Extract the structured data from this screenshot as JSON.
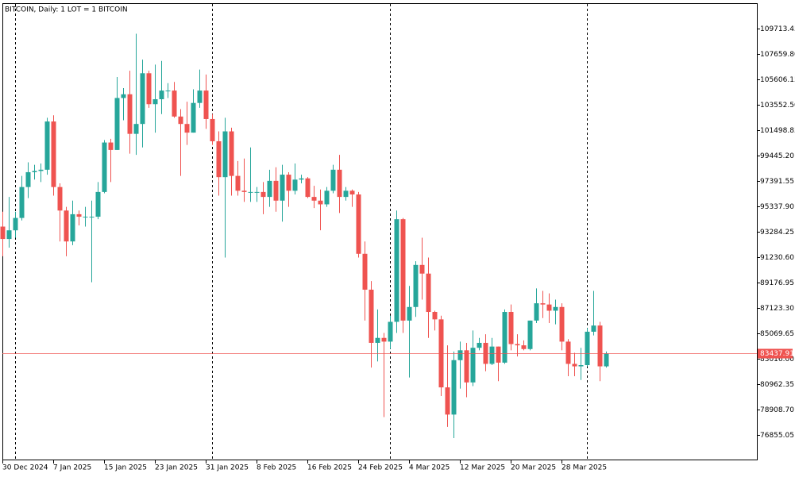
{
  "chart_data": {
    "type": "candlestick",
    "title": "BITCOIN, Daily:  1 LOT = 1 BITCOIN",
    "categories": [
      "30 Dec 2024",
      null,
      null,
      null,
      null,
      null,
      null,
      null,
      "7 Jan 2025",
      null,
      null,
      null,
      null,
      null,
      null,
      null,
      "15 Jan 2025",
      null,
      null,
      null,
      null,
      null,
      null,
      null,
      "23 Jan 2025",
      null,
      null,
      null,
      null,
      null,
      null,
      null,
      "31 Jan 2025",
      null,
      null,
      null,
      null,
      null,
      null,
      null,
      "8 Feb 2025",
      null,
      null,
      null,
      null,
      null,
      null,
      null,
      "16 Feb 2025",
      null,
      null,
      null,
      null,
      null,
      null,
      null,
      "24 Feb 2025",
      null,
      null,
      null,
      null,
      null,
      null,
      null,
      "4 Mar 2025",
      null,
      null,
      null,
      null,
      null,
      null,
      null,
      "12 Mar 2025",
      null,
      null,
      null,
      null,
      null,
      null,
      null,
      "20 Mar 2025",
      null,
      null,
      null,
      null,
      null,
      null,
      null,
      "28 Mar 2025",
      null,
      null,
      null,
      null,
      null,
      null,
      null
    ],
    "open": [
      93700,
      92700,
      93400,
      94400,
      96900,
      98100,
      98200,
      98300,
      102200,
      96900,
      95000,
      92500,
      94700,
      94500,
      94500,
      94500,
      96500,
      100500,
      99900,
      104100,
      104400,
      101200,
      102000,
      106100,
      103600,
      104000,
      104700,
      104700,
      102600,
      102000,
      101300,
      103700,
      104700,
      102400,
      100600,
      97700,
      101400,
      97800,
      96600,
      96500,
      96500,
      96500,
      96100,
      97400,
      95800,
      97900,
      96600,
      97500,
      97600,
      96100,
      95800,
      95500,
      96600,
      98300,
      96100,
      96600,
      96300,
      91500,
      88600,
      84300,
      84700,
      84400,
      86000,
      94300,
      86100,
      87200,
      90600,
      89900,
      86800,
      86200,
      80700,
      78500,
      82900,
      83700,
      81100,
      83900,
      84300,
      82600,
      84000,
      82700,
      86800,
      84200,
      84100,
      83800,
      86100,
      87500,
      87400,
      86900,
      87200,
      84400,
      82600,
      82400,
      82500,
      85200,
      85700,
      82400
    ],
    "high": [
      94900,
      96100,
      94900,
      97800,
      98900,
      98700,
      98800,
      102500,
      102700,
      97200,
      95300,
      95800,
      95000,
      95300,
      95800,
      97300,
      100700,
      100800,
      105800,
      104900,
      106300,
      109300,
      107200,
      106300,
      106800,
      107100,
      105300,
      105400,
      103200,
      103800,
      104800,
      106400,
      106000,
      102800,
      101400,
      102500,
      101700,
      99000,
      99200,
      100100,
      96900,
      97300,
      98300,
      98500,
      98700,
      98100,
      98800,
      97900,
      97700,
      97000,
      96700,
      96900,
      98700,
      99500,
      96900,
      96700,
      96500,
      92500,
      89300,
      87000,
      85100,
      86500,
      95000,
      94400,
      88900,
      90900,
      92800,
      91200,
      86900,
      86500,
      84100,
      83600,
      84400,
      84300,
      85300,
      84700,
      85000,
      84700,
      84000,
      87000,
      87400,
      85000,
      84500,
      86100,
      88700,
      88500,
      88300,
      87800,
      87500,
      84600,
      83500,
      83900,
      85500,
      88500,
      86000,
      83600
    ],
    "low": [
      91300,
      92000,
      92800,
      94200,
      96000,
      97500,
      97300,
      97900,
      96200,
      92500,
      91300,
      92200,
      93800,
      93700,
      89200,
      94300,
      96400,
      97300,
      99900,
      102300,
      99600,
      99500,
      100100,
      103300,
      101300,
      102800,
      104100,
      102500,
      97800,
      100300,
      101300,
      103300,
      101600,
      100300,
      96200,
      91200,
      96200,
      96200,
      95700,
      95700,
      95700,
      94700,
      95300,
      94900,
      94100,
      95300,
      96300,
      97200,
      96000,
      95200,
      93400,
      95300,
      96400,
      94800,
      95800,
      95300,
      91200,
      86100,
      82300,
      82800,
      78300,
      83800,
      85100,
      85100,
      81500,
      86400,
      87800,
      84700,
      85300,
      80000,
      77500,
      76600,
      80600,
      79900,
      80800,
      83700,
      82000,
      82500,
      81200,
      82600,
      83700,
      83200,
      83700,
      83700,
      85900,
      86300,
      85900,
      85800,
      83700,
      81600,
      81600,
      81300,
      82400,
      84900,
      81200,
      82300
    ],
    "close": [
      92700,
      93400,
      94400,
      96900,
      98100,
      98200,
      98300,
      102200,
      96900,
      95000,
      92500,
      94700,
      94500,
      94500,
      94500,
      96500,
      100500,
      99900,
      104100,
      104400,
      101200,
      102000,
      106100,
      103600,
      104000,
      104700,
      104700,
      102600,
      102000,
      101300,
      103700,
      104700,
      102400,
      100600,
      97700,
      101400,
      97800,
      96600,
      96500,
      96500,
      96500,
      96100,
      97400,
      95800,
      97900,
      96600,
      97500,
      97600,
      96100,
      95800,
      95500,
      96600,
      98300,
      96100,
      96600,
      96300,
      91500,
      88600,
      84300,
      84700,
      84400,
      86000,
      94300,
      86100,
      87200,
      90600,
      89900,
      86800,
      86200,
      80700,
      78500,
      82900,
      83700,
      81100,
      83900,
      84300,
      82600,
      84000,
      82700,
      86800,
      84200,
      84100,
      83800,
      86100,
      87500,
      87400,
      86900,
      87200,
      84400,
      82600,
      82400,
      82500,
      85200,
      85700,
      82400,
      83437.91
    ],
    "up_color": "#26a69a",
    "down_color": "#ef5350",
    "last_price": 83437.91,
    "last_price_color": "#ef5350",
    "ylim": [
      74864,
      111767
    ],
    "yticks": [
      109713.45,
      {
        "value": 107659.8,
        "label": "107659.80"
      },
      105606.15,
      {
        "value": 103552.5,
        "label": "103552.50"
      },
      101498.85,
      {
        "value": 99445.2,
        "label": "99445.20"
      },
      97391.55,
      {
        "value": 95337.9,
        "label": "95337.90"
      },
      93284.25,
      {
        "value": 91230.6,
        "label": "91230.60"
      },
      89176.95,
      {
        "value": 87123.3,
        "label": "87123.30"
      },
      85069.65,
      {
        "value": 83016,
        "label": "83016.00"
      },
      80962.35,
      {
        "value": 78908.7,
        "label": "78908.70"
      },
      76855.05
    ]
  }
}
